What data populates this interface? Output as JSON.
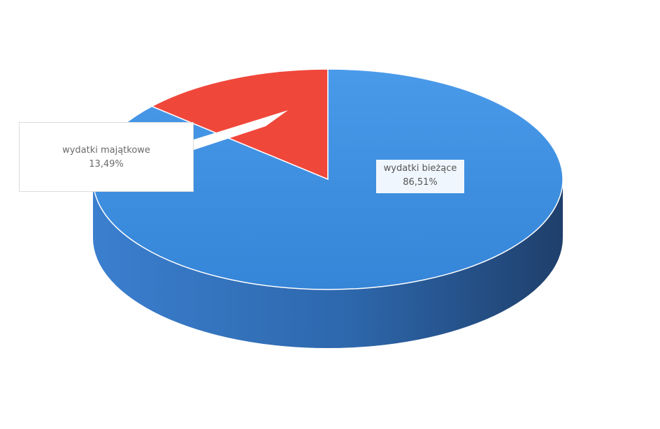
{
  "chart_data": {
    "type": "pie",
    "title": "",
    "categories": [
      "wydatki majątkowe",
      "wydatki bieżące"
    ],
    "values": [
      13.49,
      86.51
    ],
    "unit": "%",
    "data_labels": [
      {
        "category": "wydatki majątkowe",
        "value_text": "13,49%"
      },
      {
        "category": "wydatki bieżące",
        "value_text": "86,51%"
      }
    ],
    "colors": [
      "#f0473b",
      "#3d8fe0"
    ],
    "side_colors": [
      "#b83127",
      "#2f6fb3"
    ],
    "legend": "none",
    "style": "3d"
  }
}
